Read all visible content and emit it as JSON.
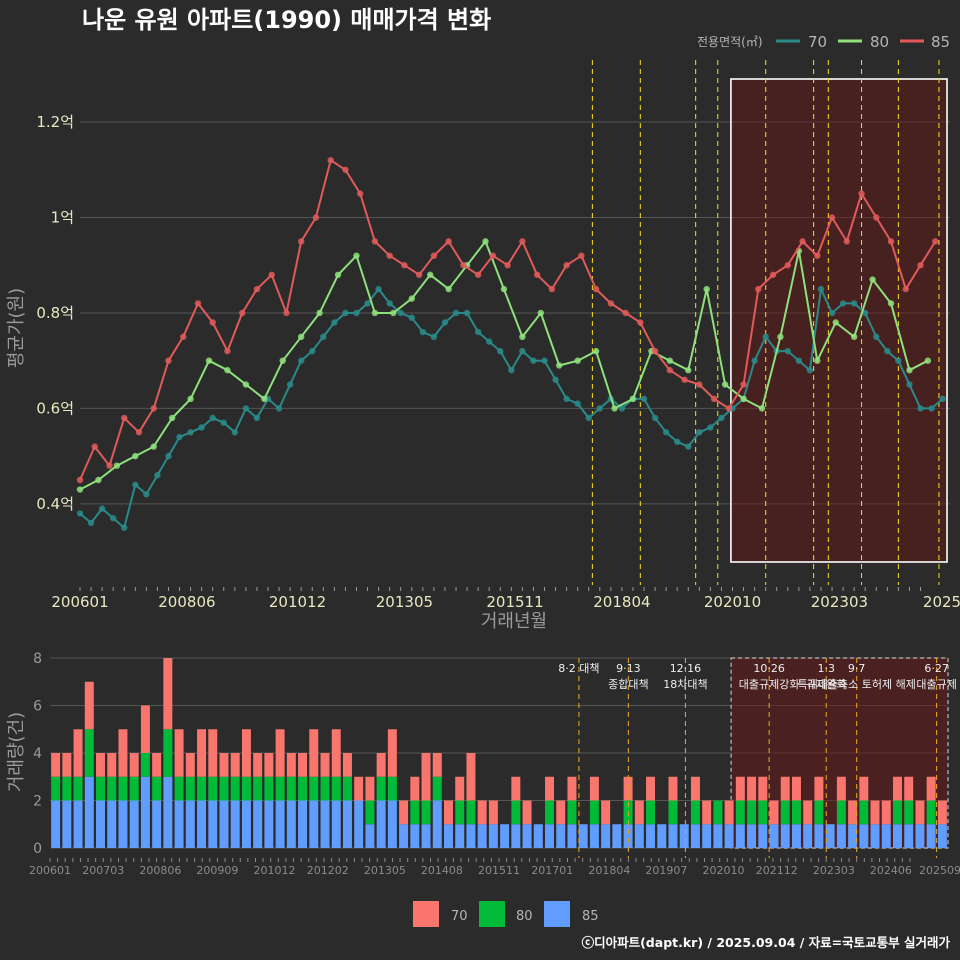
{
  "title": "나운 유원 아파트(1990) 매매가격 변화",
  "legend": {
    "title": "전용면적(㎡)",
    "items": [
      {
        "label": "70",
        "line_color": "#2a8a8a",
        "bar_color": "#f8766d"
      },
      {
        "label": "80",
        "line_color": "#8ee07c",
        "bar_color": "#00ba38"
      },
      {
        "label": "85",
        "line_color": "#e05a5a",
        "bar_color": "#619cff"
      }
    ]
  },
  "credit": "ⓒ디아파트(dapt.kr) / 2025.09.04 / 자료=국토교통부 실거래가",
  "chart_data": [
    {
      "type": "line",
      "title": "나운 유원 아파트(1990) 매매가격 변화",
      "xlabel": "거래년월",
      "ylabel": "평균가(원)",
      "x_tick_labels": [
        "200601",
        "200806",
        "201012",
        "201305",
        "201511",
        "201804",
        "202010",
        "202303",
        "2025"
      ],
      "y_tick_labels": [
        "0.4억",
        "0.6억",
        "0.8억",
        "1억",
        "1.2억"
      ],
      "y_ticks": [
        0.4,
        0.6,
        0.8,
        1.0,
        1.2
      ],
      "ylim": [
        0.23,
        1.33
      ],
      "x_range": [
        "2006-01",
        "2025-09"
      ],
      "grid": true,
      "legend_position": "top-right",
      "highlight_region": {
        "from": "2021-03",
        "to": "2025-09"
      },
      "policy_lines": [
        "2017-08",
        "2018-09",
        "2019-12",
        "2020-06",
        "2021-07",
        "2022-08",
        "2022-12",
        "2023-09",
        "2024-07",
        "2025-06"
      ],
      "series": [
        {
          "name": "70",
          "color": "#2a8a8a",
          "x": [
            "2006-01",
            "2006-04",
            "2006-07",
            "2006-10",
            "2007-01",
            "2007-04",
            "2007-07",
            "2007-10",
            "2008-01",
            "2008-04",
            "2008-07",
            "2008-10",
            "2009-01",
            "2009-04",
            "2009-07",
            "2009-10",
            "2010-01",
            "2010-04",
            "2010-07",
            "2010-10",
            "2011-01",
            "2011-04",
            "2011-07",
            "2011-10",
            "2012-01",
            "2012-04",
            "2012-07",
            "2012-10",
            "2013-01",
            "2013-04",
            "2013-07",
            "2013-10",
            "2014-01",
            "2014-04",
            "2014-07",
            "2014-10",
            "2015-01",
            "2015-04",
            "2015-07",
            "2015-10",
            "2016-01",
            "2016-04",
            "2016-07",
            "2016-10",
            "2017-01",
            "2017-04",
            "2017-07",
            "2017-10",
            "2018-01",
            "2018-04",
            "2018-07",
            "2018-10",
            "2019-01",
            "2019-04",
            "2019-07",
            "2019-10",
            "2020-01",
            "2020-04",
            "2020-07",
            "2020-10",
            "2021-01",
            "2021-04",
            "2021-07",
            "2021-10",
            "2022-01",
            "2022-04",
            "2022-07",
            "2022-10",
            "2023-01",
            "2023-04",
            "2023-07",
            "2023-10",
            "2024-01",
            "2024-04",
            "2024-07",
            "2024-10",
            "2025-01",
            "2025-04",
            "2025-07"
          ],
          "y": [
            0.38,
            0.36,
            0.39,
            0.37,
            0.35,
            0.44,
            0.42,
            0.46,
            0.5,
            0.54,
            0.55,
            0.56,
            0.58,
            0.57,
            0.55,
            0.6,
            0.58,
            0.62,
            0.6,
            0.65,
            0.7,
            0.72,
            0.75,
            0.78,
            0.8,
            0.8,
            0.82,
            0.85,
            0.82,
            0.8,
            0.79,
            0.76,
            0.75,
            0.78,
            0.8,
            0.8,
            0.76,
            0.74,
            0.72,
            0.68,
            0.72,
            0.7,
            0.7,
            0.66,
            0.62,
            0.61,
            0.58,
            0.6,
            0.62,
            0.6,
            0.62,
            0.62,
            0.58,
            0.55,
            0.53,
            0.52,
            0.55,
            0.56,
            0.58,
            0.6,
            0.62,
            0.7,
            0.75,
            0.72,
            0.72,
            0.7,
            0.68,
            0.85,
            0.8,
            0.82,
            0.82,
            0.8,
            0.75,
            0.72,
            0.7,
            0.65,
            0.6,
            0.6,
            0.62
          ]
        },
        {
          "name": "80",
          "color": "#8ee07c",
          "x": [
            "2006-01",
            "2006-06",
            "2006-11",
            "2007-04",
            "2007-09",
            "2008-02",
            "2008-07",
            "2008-12",
            "2009-05",
            "2009-10",
            "2010-03",
            "2010-08",
            "2011-01",
            "2011-06",
            "2011-11",
            "2012-04",
            "2012-09",
            "2013-02",
            "2013-07",
            "2013-12",
            "2014-05",
            "2014-10",
            "2015-03",
            "2015-08",
            "2016-01",
            "2016-06",
            "2016-11",
            "2017-04",
            "2017-09",
            "2018-02",
            "2018-07",
            "2018-12",
            "2019-05",
            "2019-10",
            "2020-03",
            "2020-08",
            "2021-01",
            "2021-06",
            "2021-11",
            "2022-04",
            "2022-09",
            "2023-02",
            "2023-07",
            "2023-12",
            "2024-05",
            "2024-10",
            "2025-03"
          ],
          "y": [
            0.43,
            0.45,
            0.48,
            0.5,
            0.52,
            0.58,
            0.62,
            0.7,
            0.68,
            0.65,
            0.62,
            0.7,
            0.75,
            0.8,
            0.88,
            0.92,
            0.8,
            0.8,
            0.83,
            0.88,
            0.85,
            0.9,
            0.95,
            0.85,
            0.75,
            0.8,
            0.69,
            0.7,
            0.72,
            0.6,
            0.62,
            0.72,
            0.7,
            0.68,
            0.85,
            0.65,
            0.62,
            0.6,
            0.75,
            0.93,
            0.7,
            0.78,
            0.75,
            0.87,
            0.82,
            0.68,
            0.7
          ]
        },
        {
          "name": "85",
          "color": "#e05a5a",
          "x": [
            "2006-01",
            "2006-05",
            "2006-09",
            "2007-01",
            "2007-05",
            "2007-09",
            "2008-01",
            "2008-05",
            "2008-09",
            "2009-01",
            "2009-05",
            "2009-09",
            "2010-01",
            "2010-05",
            "2010-09",
            "2011-01",
            "2011-05",
            "2011-09",
            "2012-01",
            "2012-05",
            "2012-09",
            "2013-01",
            "2013-05",
            "2013-09",
            "2014-01",
            "2014-05",
            "2014-09",
            "2015-01",
            "2015-05",
            "2015-09",
            "2016-01",
            "2016-05",
            "2016-09",
            "2017-01",
            "2017-05",
            "2017-09",
            "2018-01",
            "2018-05",
            "2018-09",
            "2019-01",
            "2019-05",
            "2019-09",
            "2020-01",
            "2020-05",
            "2020-09",
            "2021-01",
            "2021-05",
            "2021-09",
            "2022-01",
            "2022-05",
            "2022-09",
            "2023-01",
            "2023-05",
            "2023-09",
            "2024-01",
            "2024-05",
            "2024-09",
            "2025-01",
            "2025-05"
          ],
          "y": [
            0.45,
            0.52,
            0.48,
            0.58,
            0.55,
            0.6,
            0.7,
            0.75,
            0.82,
            0.78,
            0.72,
            0.8,
            0.85,
            0.88,
            0.8,
            0.95,
            1.0,
            1.12,
            1.1,
            1.05,
            0.95,
            0.92,
            0.9,
            0.88,
            0.92,
            0.95,
            0.9,
            0.88,
            0.92,
            0.9,
            0.95,
            0.88,
            0.85,
            0.9,
            0.92,
            0.85,
            0.82,
            0.8,
            0.78,
            0.72,
            0.68,
            0.66,
            0.65,
            0.62,
            0.6,
            0.65,
            0.85,
            0.88,
            0.9,
            0.95,
            0.92,
            1.0,
            0.95,
            1.05,
            1.0,
            0.95,
            0.85,
            0.9,
            0.95
          ]
        }
      ]
    },
    {
      "type": "bar",
      "stacked": true,
      "xlabel": "",
      "ylabel": "거래량(건)",
      "ylim": [
        0,
        8
      ],
      "y_tick_labels": [
        "0",
        "2",
        "4",
        "6",
        "8"
      ],
      "y_ticks": [
        0,
        2,
        4,
        6,
        8
      ],
      "x_tick_labels": [
        "200601",
        "200703",
        "200806",
        "200909",
        "201012",
        "201202",
        "201305",
        "201408",
        "201511",
        "201701",
        "201804",
        "201907",
        "202010",
        "202112",
        "202303",
        "202406",
        "202509"
      ],
      "x_range": [
        "2006-01",
        "2025-09"
      ],
      "highlight_region": {
        "from": "2020-12",
        "to": "2025-09"
      },
      "annotations": [
        {
          "date": "2017-08",
          "lines": [
            "8·2 대책"
          ]
        },
        {
          "date": "2018-09",
          "lines": [
            "9·13",
            "종합대책"
          ]
        },
        {
          "date": "2019-12",
          "lines": [
            "12·16",
            "18차대책"
          ]
        },
        {
          "date": "2021-10",
          "lines": [
            "10·26",
            "대출규제강화"
          ]
        },
        {
          "date": "2023-01",
          "lines": [
            "1·3",
            "규제완화"
          ]
        },
        {
          "date": "2023-09",
          "lines": [
            "9·7",
            "특례대출축소 토허제 해제"
          ]
        },
        {
          "date": "2025-06",
          "lines": [
            "6·27",
            "대출규제"
          ]
        }
      ],
      "series_names": [
        "70",
        "80",
        "85"
      ],
      "monthly_totals_sample_note": "",
      "series": [
        {
          "name": "70",
          "values": [
            1,
            1,
            2,
            2,
            1,
            1,
            2,
            1,
            2,
            1,
            3,
            2,
            1,
            2,
            2,
            1,
            1,
            2,
            1,
            1,
            2,
            1,
            1,
            2,
            1,
            2,
            1,
            1,
            1,
            1,
            2,
            1,
            1,
            2,
            1,
            1,
            1,
            2,
            1,
            1,
            0,
            1,
            1,
            0,
            1,
            1,
            1,
            0,
            1,
            1,
            0,
            1,
            1,
            1,
            0,
            1,
            0,
            1,
            1,
            0,
            1,
            1,
            1,
            1,
            1,
            1,
            1,
            1,
            1,
            0,
            1,
            1,
            1,
            1,
            1,
            1,
            1,
            1,
            1,
            1
          ]
        },
        {
          "name": "80",
          "values": [
            1,
            1,
            1,
            2,
            1,
            1,
            1,
            1,
            1,
            1,
            2,
            1,
            1,
            1,
            1,
            1,
            1,
            1,
            1,
            1,
            1,
            1,
            1,
            1,
            1,
            1,
            1,
            0,
            1,
            1,
            1,
            0,
            1,
            1,
            1,
            0,
            1,
            1,
            0,
            0,
            0,
            1,
            0,
            0,
            1,
            0,
            1,
            0,
            1,
            0,
            0,
            1,
            0,
            1,
            0,
            1,
            0,
            1,
            0,
            1,
            0,
            1,
            1,
            1,
            0,
            1,
            1,
            0,
            1,
            0,
            1,
            0,
            1,
            0,
            0,
            1,
            1,
            0,
            1,
            0
          ]
        },
        {
          "name": "85",
          "values": [
            2,
            2,
            2,
            3,
            2,
            2,
            2,
            2,
            3,
            2,
            3,
            2,
            2,
            2,
            2,
            2,
            2,
            2,
            2,
            2,
            2,
            2,
            2,
            2,
            2,
            2,
            2,
            2,
            1,
            2,
            2,
            1,
            1,
            1,
            2,
            1,
            1,
            1,
            1,
            1,
            1,
            1,
            1,
            1,
            1,
            1,
            1,
            1,
            1,
            1,
            1,
            1,
            1,
            1,
            1,
            1,
            1,
            1,
            1,
            1,
            1,
            1,
            1,
            1,
            1,
            1,
            1,
            1,
            1,
            1,
            1,
            1,
            1,
            1,
            1,
            1,
            1,
            1,
            1,
            1
          ]
        }
      ]
    }
  ]
}
